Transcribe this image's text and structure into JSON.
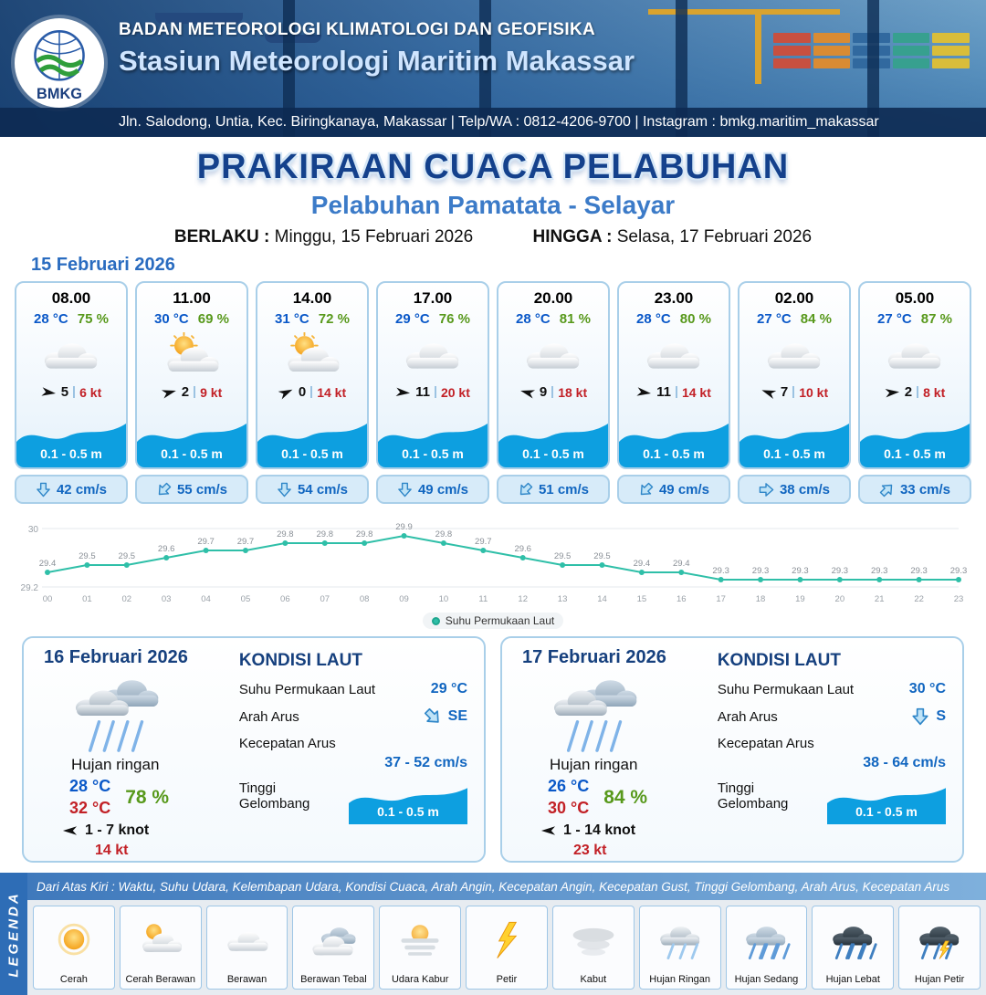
{
  "header": {
    "logo": "BMKG",
    "agency": "BADAN METEOROLOGI KLIMATOLOGI DAN GEOFISIKA",
    "station": "Stasiun Meteorologi Maritim Makassar",
    "address": "Jln. Salodong, Untia, Kec. Biringkanaya, Makassar | Telp/WA : 0812-4206-9700 | Instagram : bmkg.maritim_makassar"
  },
  "title": {
    "main": "PRAKIRAAN CUACA PELABUHAN",
    "port": "Pelabuhan Pamatata - Selayar",
    "berlaku_label": "BERLAKU :",
    "berlaku_value": "Minggu, 15 Februari 2026",
    "hingga_label": "HINGGA :",
    "hingga_value": "Selasa, 17 Februari 2026"
  },
  "forecast_date": "15 Februari 2026",
  "cards": [
    {
      "time": "08.00",
      "temp": "28 °C",
      "rh": "75 %",
      "wind_speed": "5",
      "wind_kt": "6 kt",
      "wind_deg": 8,
      "wave": "0.1 - 0.5 m",
      "current": "42 cm/s",
      "current_deg": 0
    },
    {
      "time": "11.00",
      "temp": "30 °C",
      "rh": "69 %",
      "wind_speed": "2",
      "wind_kt": "9 kt",
      "wind_deg": -15,
      "wave": "0.1 - 0.5 m",
      "current": "55 cm/s",
      "current_deg": 45
    },
    {
      "time": "14.00",
      "temp": "31 °C",
      "rh": "72 %",
      "wind_speed": "0",
      "wind_kt": "14 kt",
      "wind_deg": -25,
      "wave": "0.1 - 0.5 m",
      "current": "54 cm/s",
      "current_deg": 0
    },
    {
      "time": "17.00",
      "temp": "29 °C",
      "rh": "76 %",
      "wind_speed": "11",
      "wind_kt": "20 kt",
      "wind_deg": 5,
      "wave": "0.1 - 0.5 m",
      "current": "49 cm/s",
      "current_deg": 0
    },
    {
      "time": "20.00",
      "temp": "28 °C",
      "rh": "81 %",
      "wind_speed": "9",
      "wind_kt": "18 kt",
      "wind_deg": 195,
      "wave": "0.1 - 0.5 m",
      "current": "51 cm/s",
      "current_deg": 45
    },
    {
      "time": "23.00",
      "temp": "28 °C",
      "rh": "80 %",
      "wind_speed": "11",
      "wind_kt": "14 kt",
      "wind_deg": 8,
      "wave": "0.1 - 0.5 m",
      "current": "49 cm/s",
      "current_deg": 45
    },
    {
      "time": "02.00",
      "temp": "27 °C",
      "rh": "84 %",
      "wind_speed": "7",
      "wind_kt": "10 kt",
      "wind_deg": 200,
      "wave": "0.1 - 0.5 m",
      "current": "38 cm/s",
      "current_deg": 270
    },
    {
      "time": "05.00",
      "temp": "27 °C",
      "rh": "87 %",
      "wind_speed": "2",
      "wind_kt": "8 kt",
      "wind_deg": -5,
      "wave": "0.1 - 0.5 m",
      "current": "33 cm/s",
      "current_deg": 225
    }
  ],
  "chart_data": {
    "type": "line",
    "series_name": "Suhu Permukaan Laut",
    "x": [
      "00",
      "01",
      "02",
      "03",
      "04",
      "05",
      "06",
      "07",
      "08",
      "09",
      "10",
      "11",
      "12",
      "13",
      "14",
      "15",
      "16",
      "17",
      "18",
      "19",
      "20",
      "21",
      "22",
      "23"
    ],
    "values": [
      29.4,
      29.5,
      29.5,
      29.6,
      29.7,
      29.7,
      29.8,
      29.8,
      29.8,
      29.9,
      29.8,
      29.7,
      29.6,
      29.5,
      29.5,
      29.4,
      29.4,
      29.3,
      29.3,
      29.3,
      29.3,
      29.3,
      29.3,
      29.3
    ],
    "ylim": [
      29.2,
      30
    ],
    "color": "#2fbfa8",
    "xlabel": "",
    "ylabel": ""
  },
  "days": [
    {
      "date": "16 Februari 2026",
      "weather": "Hujan ringan",
      "temp_min": "28 °C",
      "rh": "78 %",
      "temp_max": "32 °C",
      "wind_range": "1  - 7 knot",
      "wind_gust": "14 kt",
      "wind_deg": 180,
      "sea_title": "KONDISI LAUT",
      "sst_label": "Suhu Permukaan Laut",
      "sst": "29 °C",
      "arah_label": "Arah Arus",
      "arah": "SE",
      "arah_deg": 315,
      "kec_label": "Kecepatan Arus",
      "kec": "37  - 52 cm/s",
      "wave_label": "Tinggi Gelombang",
      "wave": "0.1 - 0.5 m"
    },
    {
      "date": "17 Februari 2026",
      "weather": "Hujan ringan",
      "temp_min": "26 °C",
      "rh": "84 %",
      "temp_max": "30 °C",
      "wind_range": "1  - 14 knot",
      "wind_gust": "23 kt",
      "wind_deg": 180,
      "sea_title": "KONDISI LAUT",
      "sst_label": "Suhu Permukaan Laut",
      "sst": "30 °C",
      "arah_label": "Arah Arus",
      "arah": "S",
      "arah_deg": 0,
      "kec_label": "Kecepatan Arus",
      "kec": "38  - 64 cm/s",
      "wave_label": "Tinggi Gelombang",
      "wave": "0.1 - 0.5 m"
    }
  ],
  "legend": {
    "side_label": "LEGENDA",
    "caption": "Dari Atas Kiri : Waktu, Suhu Udara, Kelembapan Udara, Kondisi Cuaca, Arah Angin, Kecepatan Angin, Kecepatan Gust, Tinggi Gelombang, Arah Arus, Kecepatan Arus",
    "items": [
      {
        "label": "Cerah",
        "icon": "sun-icon"
      },
      {
        "label": "Cerah Berawan",
        "icon": "sun-cloud-icon"
      },
      {
        "label": "Berawan",
        "icon": "cloud-icon"
      },
      {
        "label": "Berawan Tebal",
        "icon": "thick-cloud-icon"
      },
      {
        "label": "Udara Kabur",
        "icon": "haze-icon"
      },
      {
        "label": "Petir",
        "icon": "lightning-icon"
      },
      {
        "label": "Kabut",
        "icon": "fog-icon"
      },
      {
        "label": "Hujan Ringan",
        "icon": "light-rain-icon"
      },
      {
        "label": "Hujan Sedang",
        "icon": "moderate-rain-icon"
      },
      {
        "label": "Hujan Lebat",
        "icon": "heavy-rain-icon"
      },
      {
        "label": "Hujan Petir",
        "icon": "thunderstorm-icon"
      }
    ]
  }
}
